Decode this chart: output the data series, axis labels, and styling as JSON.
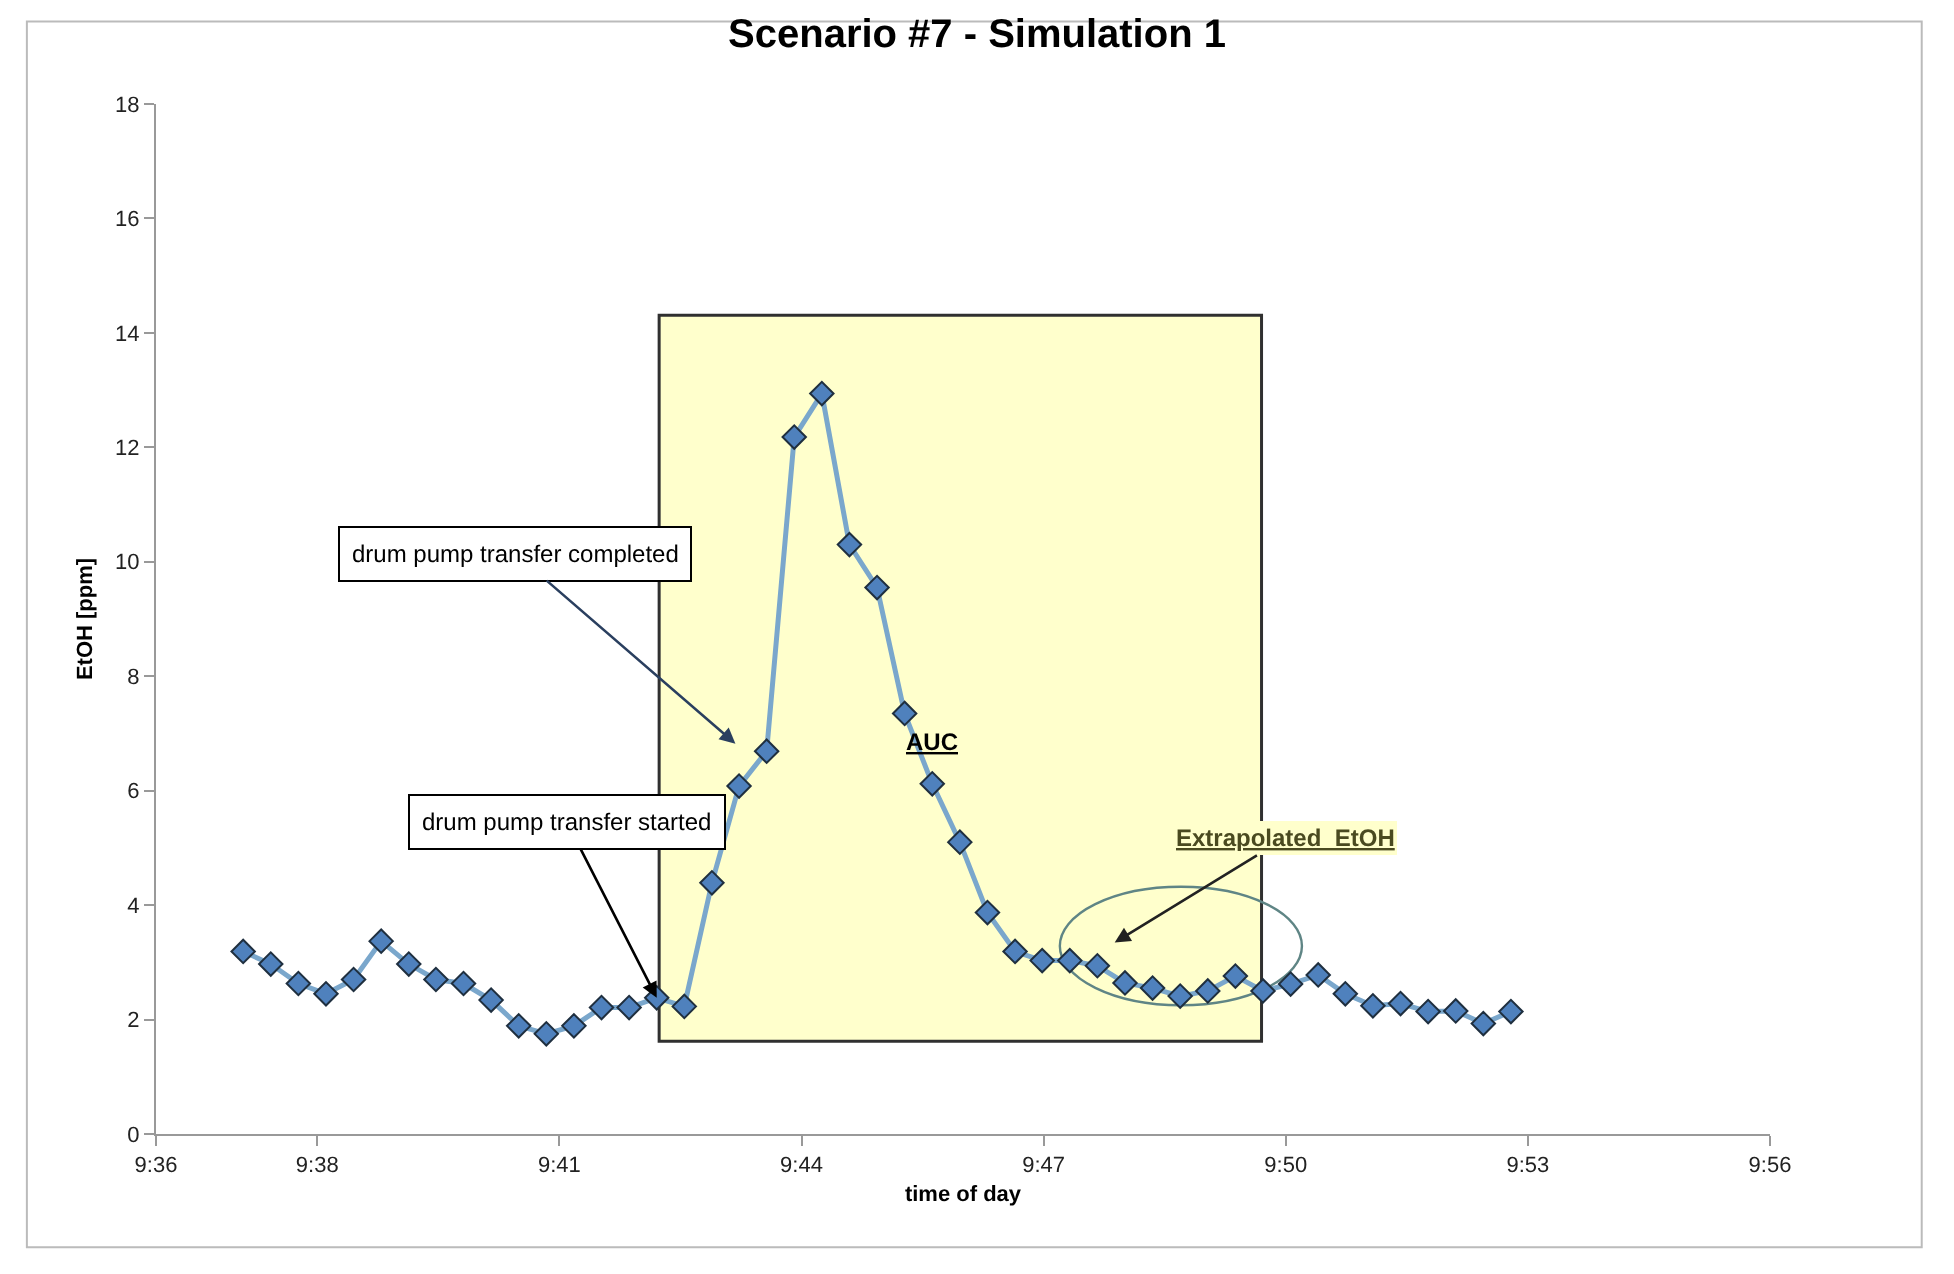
{
  "chart_data": {
    "type": "line",
    "title": "Scenario #7 - Simulation 1",
    "xlabel": "time of day",
    "ylabel": "EtOH [ppm]",
    "x": [
      9.618,
      9.6237,
      9.6294,
      9.6351,
      9.6408,
      9.6465,
      9.6522,
      9.6578,
      9.6635,
      9.6692,
      9.6749,
      9.6806,
      9.6863,
      9.692,
      9.6977,
      9.7034,
      9.7091,
      9.7148,
      9.7204,
      9.7261,
      9.7318,
      9.7375,
      9.7432,
      9.7489,
      9.7546,
      9.7603,
      9.766,
      9.7717,
      9.7774,
      9.783,
      9.7887,
      9.7944,
      9.8001,
      9.8058,
      9.8115,
      9.8172,
      9.8229,
      9.8286,
      9.8343,
      9.84,
      9.8456,
      9.8513,
      9.857,
      9.8627,
      9.8684,
      9.8741,
      9.8798
    ],
    "series": [
      {
        "color": "#4f81bd",
        "values": [
          3.19,
          2.97,
          2.63,
          2.45,
          2.7,
          3.37,
          2.97,
          2.7,
          2.63,
          2.34,
          1.89,
          1.75,
          1.89,
          2.21,
          2.21,
          2.38,
          2.23,
          4.39,
          6.08,
          6.69,
          12.18,
          12.94,
          10.3,
          9.55,
          7.35,
          6.12,
          5.1,
          3.87,
          3.19,
          3.03,
          3.03,
          2.94,
          2.64,
          2.55,
          2.41,
          2.5,
          2.76,
          2.5,
          2.62,
          2.78,
          2.45,
          2.24,
          2.28,
          2.14,
          2.15,
          1.93,
          2.14
        ]
      }
    ],
    "xlim": [
      9.6,
      9.9333
    ],
    "xticks": [
      {
        "value": 9.6,
        "label": "9:36"
      },
      {
        "value": 9.6333,
        "label": "9:38"
      },
      {
        "value": 9.6833,
        "label": "9:41"
      },
      {
        "value": 9.7333,
        "label": "9:44"
      },
      {
        "value": 9.7833,
        "label": "9:47"
      },
      {
        "value": 9.8333,
        "label": "9:50"
      },
      {
        "value": 9.8833,
        "label": "9:53"
      },
      {
        "value": 9.9333,
        "label": "9:56"
      }
    ],
    "ylim": [
      0,
      18
    ],
    "yticks": [
      0,
      2,
      4,
      6,
      8,
      10,
      12,
      14,
      16,
      18
    ],
    "grid": false,
    "legend": false,
    "marker": "diamond",
    "line_style": "solid",
    "bands": [
      {
        "axis": "x",
        "from": 9.7039,
        "to": 9.8283,
        "label": "AUC",
        "color": "#ffffcc"
      }
    ],
    "annotations": [
      "drum pump transfer completed",
      {
        "text": "drum pump transfer started",
        "x": 9.7034,
        "y": 2.38
      },
      "Extrapolated  EtOH"
    ]
  }
}
